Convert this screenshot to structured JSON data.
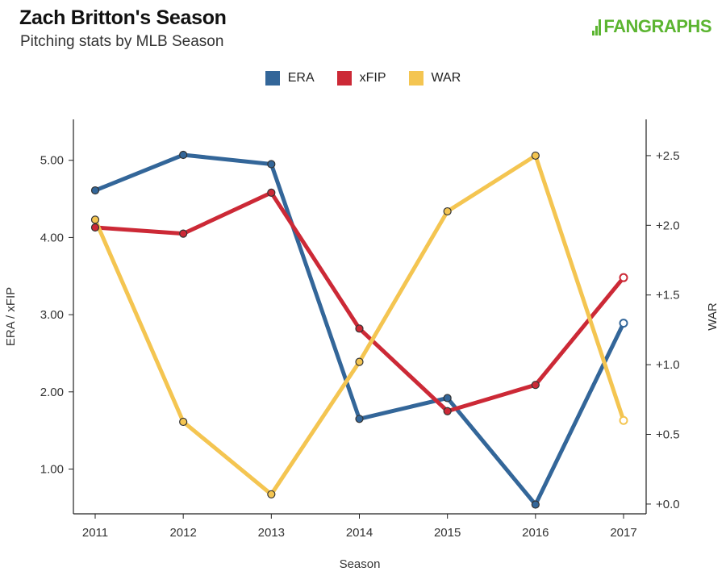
{
  "header": {
    "title": "Zach Britton's Season",
    "subtitle": "Pitching stats by MLB Season",
    "logo_text": "FANGRAPHS",
    "logo_color": "#5cb531"
  },
  "chart_data": {
    "type": "line",
    "title": "Zach Britton's Season",
    "subtitle": "Pitching stats by MLB Season",
    "xlabel": "Season",
    "ylabel_left": "ERA / xFIP",
    "ylabel_right": "WAR",
    "categories": [
      "2011",
      "2012",
      "2013",
      "2014",
      "2015",
      "2016",
      "2017"
    ],
    "ylim_left": [
      0.42,
      5.53
    ],
    "ylim_right": [
      -0.07,
      2.76
    ],
    "left_ticks": [
      "1.00",
      "2.00",
      "3.00",
      "4.00",
      "5.00"
    ],
    "left_tick_values": [
      1,
      2,
      3,
      4,
      5
    ],
    "right_ticks": [
      "+0.0",
      "+0.5",
      "+1.0",
      "+1.5",
      "+2.0",
      "+2.5"
    ],
    "right_tick_values": [
      0,
      0.5,
      1,
      1.5,
      2,
      2.5
    ],
    "legend_position": "top-center",
    "series": [
      {
        "name": "ERA",
        "axis": "left",
        "color": "#336699",
        "values": [
          4.61,
          5.07,
          4.95,
          1.65,
          1.92,
          0.54,
          2.89
        ]
      },
      {
        "name": "xFIP",
        "axis": "left",
        "color": "#cc2936",
        "values": [
          4.13,
          4.05,
          4.58,
          2.82,
          1.75,
          2.09,
          3.48
        ]
      },
      {
        "name": "WAR",
        "axis": "right",
        "color": "#f4c551",
        "values": [
          2.04,
          0.59,
          0.07,
          1.02,
          2.1,
          2.5,
          0.6
        ]
      }
    ],
    "hollow_last_point": true
  }
}
